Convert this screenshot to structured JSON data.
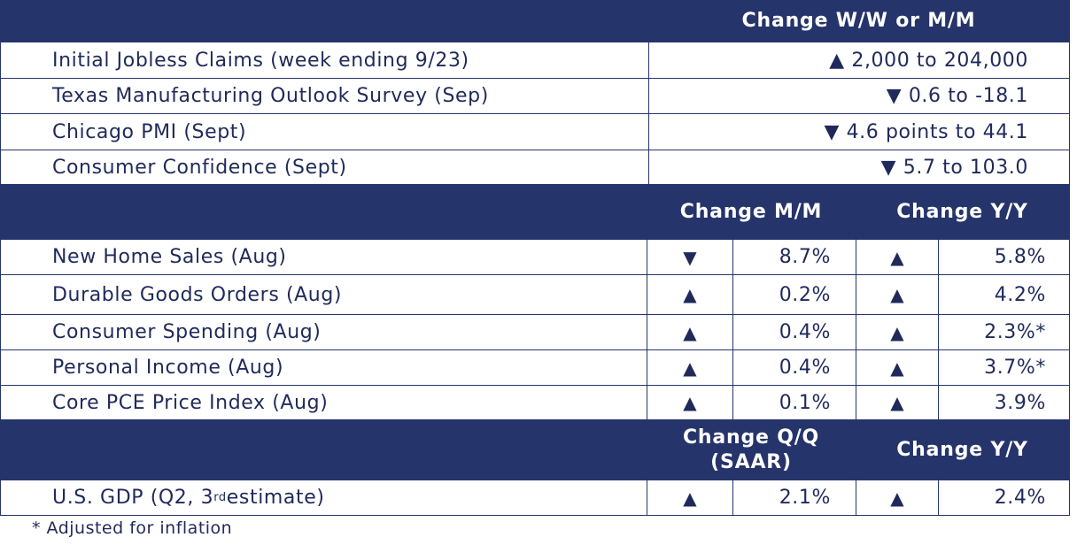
{
  "header1": {
    "title": "Change W/W or M/M"
  },
  "section1": [
    {
      "label": "Initial Jobless Claims (week ending 9/23)",
      "value": "▲ 2,000 to 204,000"
    },
    {
      "label": "Texas Manufacturing Outlook Survey (Sep)",
      "value": "▼ 0.6 to -18.1"
    },
    {
      "label": "Chicago PMI (Sept)",
      "value": "▼ 4.6 points to 44.1"
    },
    {
      "label": "Consumer Confidence (Sept)",
      "value": "▼ 5.7 to 103.0"
    }
  ],
  "header2": {
    "col1": "Change M/M",
    "col2": "Change Y/Y"
  },
  "section2": [
    {
      "label": "New Home Sales (Aug)",
      "arrow1": "▼",
      "value1": "8.7%",
      "arrow2": "▲",
      "value2": "5.8%"
    },
    {
      "label": "Durable Goods Orders (Aug)",
      "arrow1": "▲",
      "value1": "0.2%",
      "arrow2": "▲",
      "value2": "4.2%"
    },
    {
      "label": "Consumer Spending (Aug)",
      "arrow1": "▲",
      "value1": "0.4%",
      "arrow2": "▲",
      "value2": "2.3%*"
    },
    {
      "label": "Personal Income (Aug)",
      "arrow1": "▲",
      "value1": "0.4%",
      "arrow2": "▲",
      "value2": "3.7%*"
    },
    {
      "label": "Core PCE Price Index (Aug)",
      "arrow1": "▲",
      "value1": "0.1%",
      "arrow2": "▲",
      "value2": "3.9%"
    }
  ],
  "header3": {
    "col1_line1": "Change Q/Q",
    "col1_line2": "(SAAR)",
    "col2": "Change Y/Y"
  },
  "section3": [
    {
      "label_pre": "U.S. GDP (Q2, 3",
      "label_sup": "rd",
      "label_post": " estimate)",
      "arrow1": "▲",
      "value1": "2.1%",
      "arrow2": "▲",
      "value2": "2.4%"
    }
  ],
  "footnote": "* Adjusted for inflation",
  "colors": {
    "header_bg": "#25346a",
    "text": "#1f2a5a"
  }
}
